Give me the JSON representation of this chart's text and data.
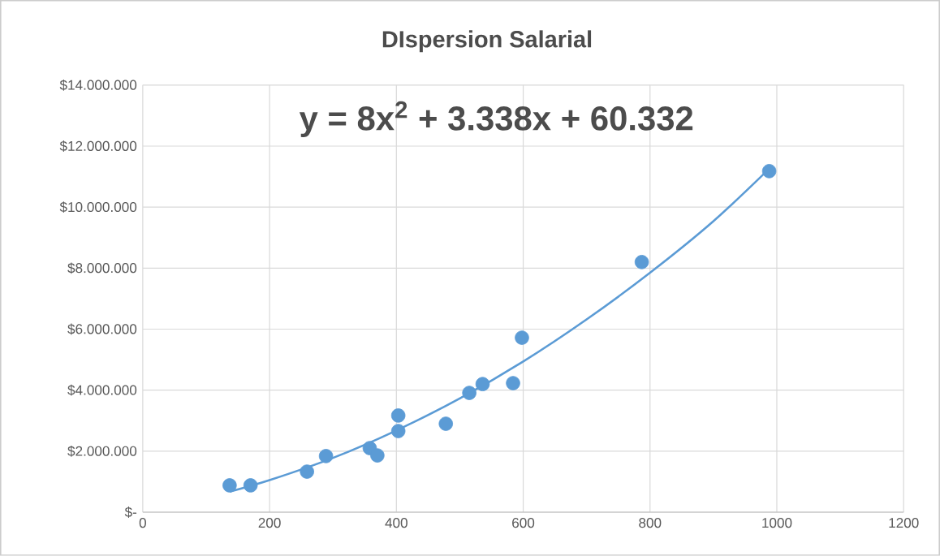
{
  "chart_data": {
    "type": "scatter",
    "title": "DIspersion Salarial",
    "annotations": [
      "y = 8x$^{2}$ + 3.338x + 60.332"
    ],
    "xlim": [
      0,
      1200
    ],
    "xticks": [
      0,
      200,
      400,
      600,
      800,
      1000,
      1200
    ],
    "ylim": [
      0,
      14000000
    ],
    "yticks": [
      {
        "value": 0,
        "label": "$-"
      },
      {
        "value": 2000000,
        "label": "$2.000.000"
      },
      {
        "value": 4000000,
        "label": "$4.000.000"
      },
      {
        "value": 6000000,
        "label": "$6.000.000"
      },
      {
        "value": 8000000,
        "label": "$8.000.000"
      },
      {
        "value": 10000000,
        "label": "$10.000.000"
      },
      {
        "value": 12000000,
        "label": "$12.000.000"
      },
      {
        "value": 14000000,
        "label": "$14.000.000"
      }
    ],
    "grid": true,
    "series": [
      {
        "marker": "circle",
        "color": "#5b9bd5",
        "x": [
          137,
          170,
          259,
          289,
          358,
          370,
          403,
          403,
          478,
          515,
          536,
          584,
          598,
          787,
          988
        ],
        "values": [
          880000,
          880000,
          1330000,
          1840000,
          2100000,
          1860000,
          3170000,
          2660000,
          2900000,
          3910000,
          4200000,
          4230000,
          5720000,
          8200000,
          11180000
        ]
      },
      {
        "type": "line",
        "marker": "none",
        "color": "#5b9bd5",
        "x": [
          137,
          200,
          300,
          400,
          500,
          600,
          700,
          800,
          900,
          990
        ],
        "values": [
          670000,
          1050000,
          1780000,
          2680000,
          3730000,
          4940000,
          6320000,
          7850000,
          9540000,
          11300000
        ]
      }
    ]
  }
}
